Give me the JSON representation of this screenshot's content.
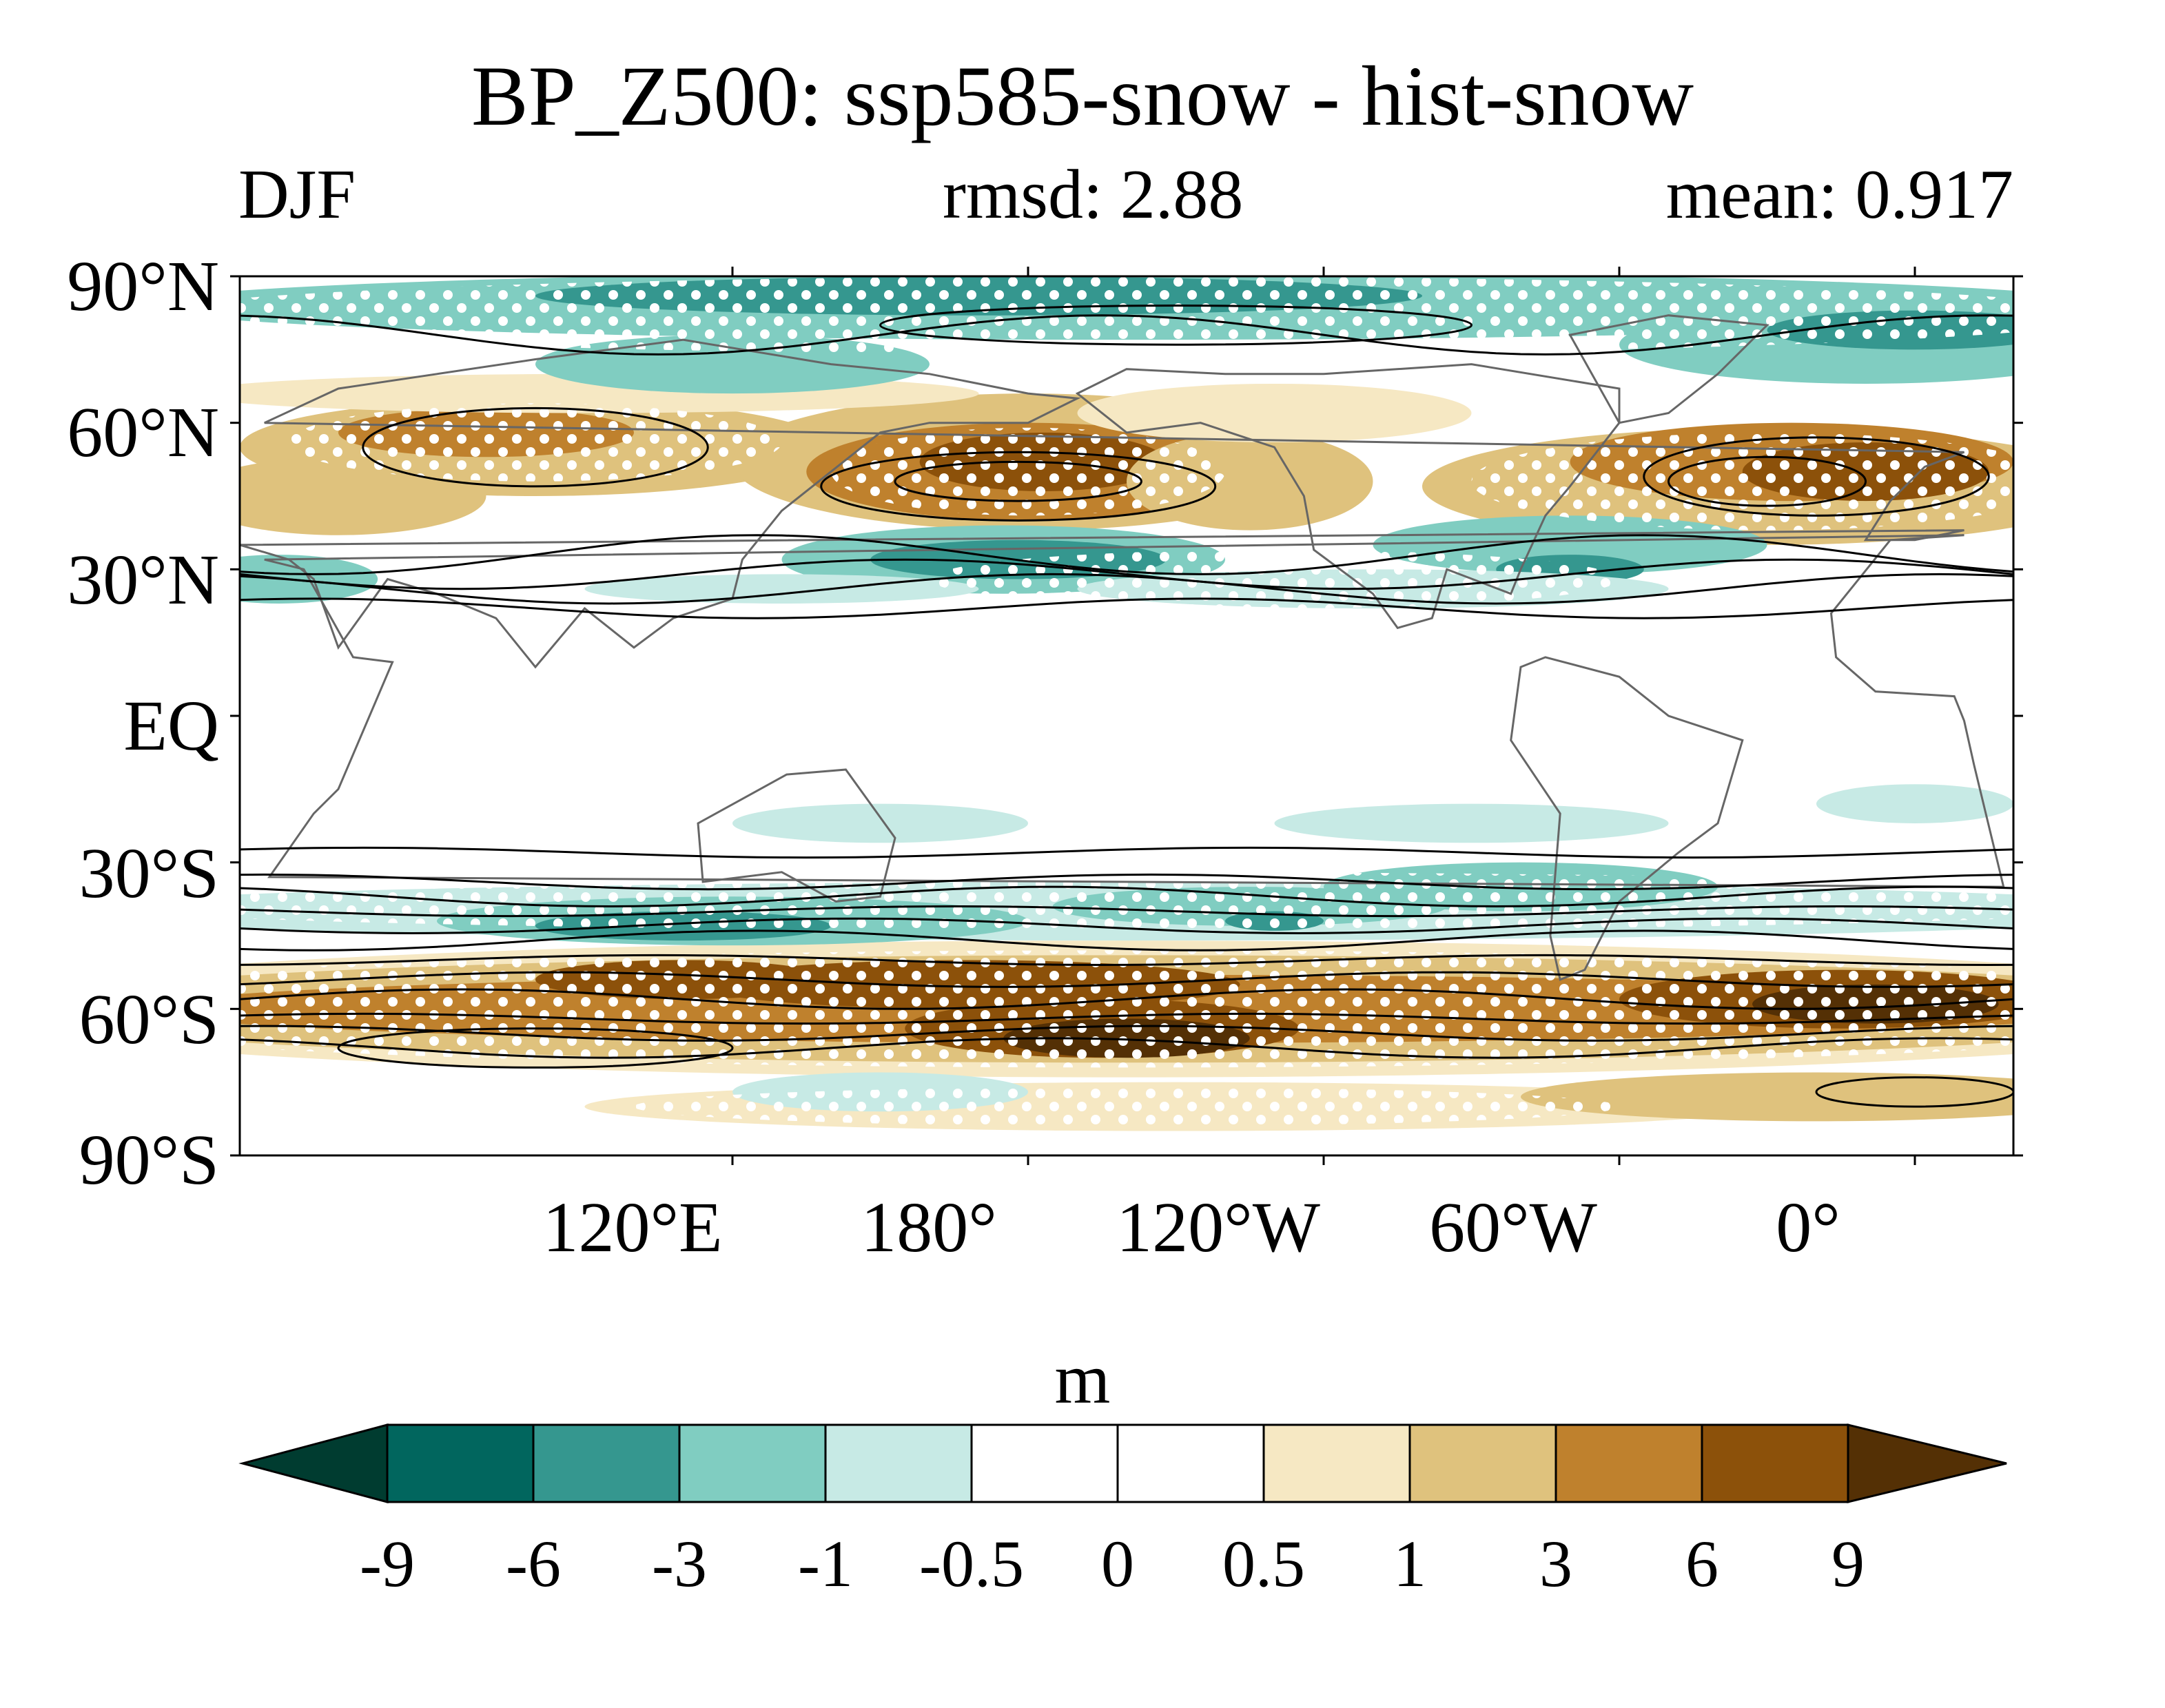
{
  "title": "BP_Z500: ssp585-snow - hist-snow",
  "season": "DJF",
  "rmsd_label": "rmsd: 2.88",
  "mean_label": "mean: 0.917",
  "lat_axis": [
    "90°N",
    "60°N",
    "30°N",
    "EQ",
    "30°S",
    "60°S",
    "90°S"
  ],
  "lon_axis": [
    "120°E",
    "180°",
    "120°W",
    "60°W",
    "0°"
  ],
  "colorbar": {
    "units": "m",
    "levels": [
      "-9",
      "-6",
      "-3",
      "-1",
      "-0.5",
      "0",
      "0.5",
      "1",
      "3",
      "6",
      "9"
    ],
    "colors": [
      "#003c30",
      "#01665e",
      "#35978f",
      "#80cdc1",
      "#c7eae5",
      "#ffffff",
      "#ffffff",
      "#f6e8c3",
      "#dfc27d",
      "#bf812d",
      "#8c510a",
      "#543005"
    ]
  },
  "map": {
    "projection": "cylindrical equidistant",
    "lon_range": [
      20,
      380
    ],
    "lat_range": [
      -90,
      90
    ],
    "colors": {
      "land_outline": "#666666",
      "contour": "#000000",
      "stipple": "#ffffff"
    }
  }
}
